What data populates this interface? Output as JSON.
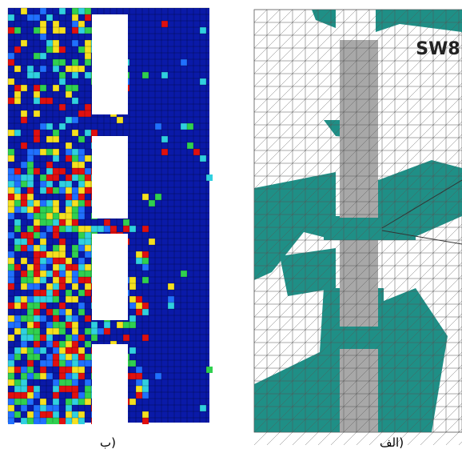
{
  "right_panel": {
    "label": "SW8"
  },
  "captions": {
    "left": "ب)",
    "right": "الف)"
  }
}
